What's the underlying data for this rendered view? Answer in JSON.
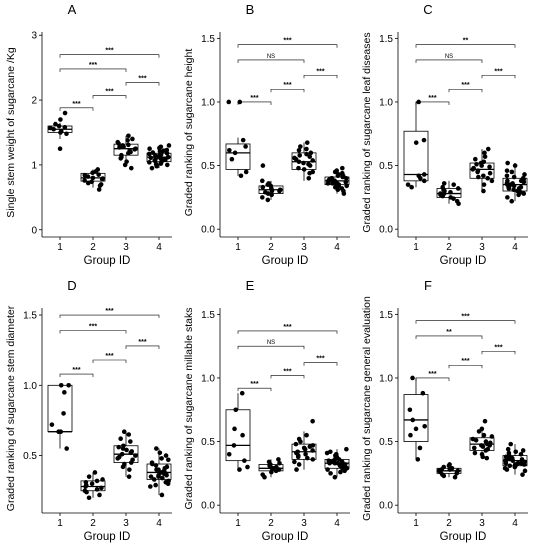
{
  "chart_data": [
    {
      "panel": "A",
      "type": "boxplot",
      "xlabel": "Group ID",
      "ylabel": "Single stem weight of sugarcane /Kg",
      "categories": [
        "1",
        "2",
        "3",
        "4"
      ],
      "ylim": [
        -0.05,
        3.05
      ],
      "yticks": [
        0,
        1,
        2,
        3
      ],
      "yticklabels": [
        "0",
        "1",
        "2",
        "3"
      ],
      "boxes": [
        {
          "q1": 1.5,
          "median": 1.55,
          "q3": 1.6,
          "low": 1.4,
          "high": 1.65
        },
        {
          "q1": 0.75,
          "median": 0.8,
          "q3": 0.87,
          "low": 0.65,
          "high": 0.93
        },
        {
          "q1": 1.15,
          "median": 1.25,
          "q3": 1.32,
          "low": 1.0,
          "high": 1.45
        },
        {
          "q1": 1.05,
          "median": 1.12,
          "q3": 1.18,
          "low": 0.95,
          "high": 1.3
        }
      ],
      "points": [
        [
          1.55,
          1.58,
          1.52,
          1.6,
          1.63,
          1.48,
          1.8,
          1.25,
          1.5,
          1.7,
          1.57
        ],
        [
          0.78,
          0.82,
          0.72,
          0.85,
          0.68,
          0.9,
          0.76,
          0.8,
          0.62,
          0.93,
          0.84,
          0.74,
          0.79,
          0.7,
          0.88
        ],
        [
          1.2,
          1.3,
          1.1,
          1.4,
          1.25,
          1.15,
          1.35,
          1.05,
          1.28,
          1.22,
          0.95,
          1.45,
          1.18,
          1.33,
          1.0,
          1.38,
          1.27,
          1.12,
          1.24,
          1.31
        ],
        [
          1.1,
          1.15,
          1.05,
          1.2,
          1.12,
          1.0,
          1.25,
          1.08,
          1.18,
          1.14,
          0.95,
          1.3,
          1.02,
          1.22,
          1.16,
          1.09,
          1.28,
          1.06,
          1.19,
          1.11,
          0.98,
          1.23,
          1.13,
          1.07,
          1.17,
          1.04,
          1.21,
          1.26,
          1.01,
          1.1
        ]
      ],
      "brackets": [
        {
          "from": 1,
          "to": 2,
          "label": "***",
          "y": 1.88
        },
        {
          "from": 2,
          "to": 3,
          "label": "***",
          "y": 2.07
        },
        {
          "from": 3,
          "to": 4,
          "label": "***",
          "y": 2.27
        },
        {
          "from": 1,
          "to": 3,
          "label": "***",
          "y": 2.48
        },
        {
          "from": 1,
          "to": 4,
          "label": "***",
          "y": 2.7
        }
      ]
    },
    {
      "panel": "B",
      "type": "boxplot",
      "xlabel": "Group ID",
      "ylabel": "Graded ranking of sugarcane height",
      "categories": [
        "1",
        "2",
        "3",
        "4"
      ],
      "ylim": [
        -0.03,
        1.55
      ],
      "yticks": [
        0,
        0.5,
        1,
        1.5
      ],
      "yticklabels": [
        "0.0",
        "0.5",
        "1.0",
        "1.5"
      ],
      "boxes": [
        {
          "q1": 0.47,
          "median": 0.6,
          "q3": 0.67,
          "low": 0.42,
          "high": 0.72
        },
        {
          "q1": 0.28,
          "median": 0.31,
          "q3": 0.34,
          "low": 0.23,
          "high": 0.38
        },
        {
          "q1": 0.47,
          "median": 0.53,
          "q3": 0.6,
          "low": 0.38,
          "high": 0.68
        },
        {
          "q1": 0.35,
          "median": 0.38,
          "q3": 0.41,
          "low": 0.28,
          "high": 0.48
        }
      ],
      "points": [
        [
          1.0,
          1.0,
          0.6,
          0.65,
          0.55,
          0.45,
          0.42,
          0.7,
          0.62
        ],
        [
          0.3,
          0.32,
          0.28,
          0.35,
          0.25,
          0.33,
          0.31,
          0.38,
          0.29,
          0.27,
          0.34,
          0.23,
          0.5,
          0.36,
          0.3
        ],
        [
          0.5,
          0.55,
          0.6,
          0.45,
          0.65,
          0.52,
          0.48,
          0.58,
          0.62,
          0.4,
          0.68,
          0.53,
          0.57,
          0.47,
          0.63,
          0.51,
          0.56,
          0.44,
          0.59,
          0.54
        ],
        [
          0.38,
          0.36,
          0.4,
          0.35,
          0.42,
          0.33,
          0.45,
          0.37,
          0.39,
          0.3,
          0.48,
          0.34,
          0.41,
          0.28,
          0.43,
          0.38,
          0.36,
          0.46,
          0.32,
          0.4,
          0.35,
          0.37,
          0.39,
          0.42,
          0.31,
          0.44,
          0.38,
          0.36,
          0.34,
          0.4
        ]
      ],
      "brackets": [
        {
          "from": 1,
          "to": 2,
          "label": "***",
          "y": 1.0
        },
        {
          "from": 2,
          "to": 3,
          "label": "***",
          "y": 1.1
        },
        {
          "from": 3,
          "to": 4,
          "label": "***",
          "y": 1.21
        },
        {
          "from": 1,
          "to": 3,
          "label": "NS",
          "y": 1.33
        },
        {
          "from": 1,
          "to": 4,
          "label": "***",
          "y": 1.45
        }
      ]
    },
    {
      "panel": "C",
      "type": "boxplot",
      "xlabel": "Group ID",
      "ylabel": "Graded ranking of sugarcane leaf diseases",
      "categories": [
        "1",
        "2",
        "3",
        "4"
      ],
      "ylim": [
        -0.03,
        1.55
      ],
      "yticks": [
        0,
        0.5,
        1,
        1.5
      ],
      "yticklabels": [
        "0.0",
        "0.5",
        "1.0",
        "1.5"
      ],
      "boxes": [
        {
          "q1": 0.38,
          "median": 0.43,
          "q3": 0.77,
          "low": 0.33,
          "high": 1.0
        },
        {
          "q1": 0.25,
          "median": 0.28,
          "q3": 0.32,
          "low": 0.2,
          "high": 0.38
        },
        {
          "q1": 0.4,
          "median": 0.47,
          "q3": 0.52,
          "low": 0.3,
          "high": 0.63
        },
        {
          "q1": 0.3,
          "median": 0.35,
          "q3": 0.4,
          "low": 0.22,
          "high": 0.52
        }
      ],
      "points": [
        [
          1.0,
          0.68,
          0.43,
          0.4,
          0.35,
          0.33,
          0.7,
          0.42,
          0.38
        ],
        [
          0.28,
          0.3,
          0.25,
          0.32,
          0.22,
          0.35,
          0.27,
          0.2,
          0.29,
          0.33,
          0.24,
          0.31,
          0.26,
          0.36,
          0.28
        ],
        [
          0.45,
          0.5,
          0.4,
          0.55,
          0.47,
          0.42,
          0.6,
          0.38,
          0.52,
          0.48,
          0.3,
          0.63,
          0.44,
          0.53,
          0.46,
          0.41,
          0.57,
          0.49,
          0.35,
          0.51
        ],
        [
          0.35,
          0.32,
          0.38,
          0.3,
          0.4,
          0.28,
          0.45,
          0.33,
          0.37,
          0.25,
          0.5,
          0.31,
          0.42,
          0.22,
          0.36,
          0.34,
          0.39,
          0.29,
          0.43,
          0.35,
          0.27,
          0.41,
          0.33,
          0.38,
          0.3,
          0.46,
          0.52,
          0.34,
          0.36,
          0.32
        ]
      ],
      "brackets": [
        {
          "from": 1,
          "to": 2,
          "label": "***",
          "y": 1.0
        },
        {
          "from": 2,
          "to": 3,
          "label": "***",
          "y": 1.1
        },
        {
          "from": 3,
          "to": 4,
          "label": "***",
          "y": 1.21
        },
        {
          "from": 1,
          "to": 3,
          "label": "NS",
          "y": 1.33
        },
        {
          "from": 1,
          "to": 4,
          "label": "**",
          "y": 1.45
        }
      ]
    },
    {
      "panel": "D",
      "type": "boxplot",
      "xlabel": "Group ID",
      "ylabel": "Graded ranking of sugarcane stem diameter",
      "categories": [
        "1",
        "2",
        "3",
        "4"
      ],
      "ylim": [
        0.12,
        1.55
      ],
      "yticks": [
        0.5,
        1,
        1.5
      ],
      "yticklabels": [
        "0.5",
        "1.0",
        "1.5"
      ],
      "boxes": [
        {
          "q1": 0.67,
          "median": 0.67,
          "q3": 1.0,
          "low": 0.55,
          "high": 1.0
        },
        {
          "q1": 0.25,
          "median": 0.28,
          "q3": 0.32,
          "low": 0.2,
          "high": 0.38
        },
        {
          "q1": 0.45,
          "median": 0.51,
          "q3": 0.57,
          "low": 0.35,
          "high": 0.67
        },
        {
          "q1": 0.33,
          "median": 0.38,
          "q3": 0.44,
          "low": 0.22,
          "high": 0.55
        }
      ],
      "points": [
        [
          1.0,
          1.0,
          0.95,
          0.67,
          0.67,
          0.55,
          0.8,
          0.72
        ],
        [
          0.28,
          0.3,
          0.25,
          0.32,
          0.22,
          0.35,
          0.27,
          0.2,
          0.29,
          0.33,
          0.24,
          0.31,
          0.26,
          0.38
        ],
        [
          0.5,
          0.55,
          0.45,
          0.6,
          0.52,
          0.48,
          0.65,
          0.42,
          0.57,
          0.53,
          0.35,
          0.67,
          0.47,
          0.56,
          0.51,
          0.44,
          0.62,
          0.49,
          0.4,
          0.54
        ],
        [
          0.38,
          0.35,
          0.42,
          0.33,
          0.45,
          0.3,
          0.5,
          0.36,
          0.4,
          0.28,
          0.55,
          0.34,
          0.44,
          0.22,
          0.39,
          0.37,
          0.43,
          0.31,
          0.47,
          0.38,
          0.29,
          0.41,
          0.36,
          0.4,
          0.32,
          0.48,
          0.52,
          0.37,
          0.39,
          0.35
        ]
      ],
      "brackets": [
        {
          "from": 1,
          "to": 2,
          "label": "***",
          "y": 1.08
        },
        {
          "from": 2,
          "to": 3,
          "label": "***",
          "y": 1.18
        },
        {
          "from": 3,
          "to": 4,
          "label": "***",
          "y": 1.28
        },
        {
          "from": 1,
          "to": 3,
          "label": "***",
          "y": 1.39
        },
        {
          "from": 1,
          "to": 4,
          "label": "***",
          "y": 1.5
        }
      ]
    },
    {
      "panel": "E",
      "type": "boxplot",
      "xlabel": "Group ID",
      "ylabel": "Graded ranking of sugarcane millable staks",
      "categories": [
        "1",
        "2",
        "3",
        "4"
      ],
      "ylim": [
        -0.03,
        1.55
      ],
      "yticks": [
        0,
        0.5,
        1,
        1.5
      ],
      "yticklabels": [
        "0.0",
        "0.5",
        "1.0",
        "1.5"
      ],
      "boxes": [
        {
          "q1": 0.35,
          "median": 0.47,
          "q3": 0.75,
          "low": 0.28,
          "high": 0.88
        },
        {
          "q1": 0.27,
          "median": 0.29,
          "q3": 0.32,
          "low": 0.22,
          "high": 0.36
        },
        {
          "q1": 0.36,
          "median": 0.42,
          "q3": 0.48,
          "low": 0.28,
          "high": 0.58
        },
        {
          "q1": 0.29,
          "median": 0.33,
          "q3": 0.36,
          "low": 0.22,
          "high": 0.44
        }
      ],
      "points": [
        [
          0.88,
          0.75,
          0.55,
          0.47,
          0.4,
          0.35,
          0.3,
          0.28,
          0.6
        ],
        [
          0.29,
          0.3,
          0.27,
          0.32,
          0.24,
          0.33,
          0.28,
          0.22,
          0.31,
          0.34,
          0.26,
          0.36,
          0.29
        ],
        [
          0.42,
          0.45,
          0.38,
          0.5,
          0.4,
          0.36,
          0.55,
          0.34,
          0.47,
          0.43,
          0.28,
          0.66,
          0.39,
          0.48,
          0.41,
          0.37,
          0.52,
          0.44,
          0.32,
          0.46
        ],
        [
          0.33,
          0.31,
          0.35,
          0.29,
          0.37,
          0.27,
          0.4,
          0.32,
          0.34,
          0.25,
          0.44,
          0.3,
          0.36,
          0.22,
          0.33,
          0.31,
          0.38,
          0.28,
          0.42,
          0.34,
          0.26,
          0.35,
          0.32,
          0.36,
          0.29,
          0.39,
          0.41,
          0.33,
          0.3,
          0.31
        ]
      ],
      "brackets": [
        {
          "from": 1,
          "to": 2,
          "label": "***",
          "y": 0.92
        },
        {
          "from": 2,
          "to": 3,
          "label": "***",
          "y": 1.02
        },
        {
          "from": 3,
          "to": 4,
          "label": "***",
          "y": 1.12
        },
        {
          "from": 1,
          "to": 3,
          "label": "NS",
          "y": 1.25
        },
        {
          "from": 1,
          "to": 4,
          "label": "***",
          "y": 1.37
        }
      ]
    },
    {
      "panel": "F",
      "type": "boxplot",
      "xlabel": "Group ID",
      "ylabel": "Graded ranking of sugarcane general evaluation",
      "categories": [
        "1",
        "2",
        "3",
        "4"
      ],
      "ylim": [
        -0.03,
        1.55
      ],
      "yticks": [
        0,
        0.5,
        1,
        1.5
      ],
      "yticklabels": [
        "0.0",
        "0.5",
        "1.0",
        "1.5"
      ],
      "boxes": [
        {
          "q1": 0.5,
          "median": 0.67,
          "q3": 0.87,
          "low": 0.36,
          "high": 1.0
        },
        {
          "q1": 0.25,
          "median": 0.27,
          "q3": 0.29,
          "low": 0.22,
          "high": 0.32
        },
        {
          "q1": 0.43,
          "median": 0.48,
          "q3": 0.53,
          "low": 0.37,
          "high": 0.6
        },
        {
          "q1": 0.31,
          "median": 0.35,
          "q3": 0.39,
          "low": 0.24,
          "high": 0.48
        }
      ],
      "points": [
        [
          1.0,
          0.88,
          0.75,
          0.67,
          0.62,
          0.55,
          0.45,
          0.36,
          0.6
        ],
        [
          0.27,
          0.28,
          0.25,
          0.29,
          0.23,
          0.3,
          0.26,
          0.22,
          0.28,
          0.31,
          0.24,
          0.27,
          0.32
        ],
        [
          0.48,
          0.5,
          0.45,
          0.55,
          0.47,
          0.43,
          0.6,
          0.4,
          0.52,
          0.49,
          0.37,
          0.66,
          0.46,
          0.54,
          0.44,
          0.41,
          0.58,
          0.51,
          0.38,
          0.47
        ],
        [
          0.35,
          0.33,
          0.37,
          0.31,
          0.39,
          0.29,
          0.42,
          0.34,
          0.36,
          0.27,
          0.48,
          0.32,
          0.38,
          0.24,
          0.35,
          0.33,
          0.4,
          0.3,
          0.44,
          0.36,
          0.28,
          0.37,
          0.34,
          0.38,
          0.31,
          0.41,
          0.43,
          0.35,
          0.32,
          0.33
        ]
      ],
      "brackets": [
        {
          "from": 1,
          "to": 2,
          "label": "***",
          "y": 1.0
        },
        {
          "from": 2,
          "to": 3,
          "label": "***",
          "y": 1.1
        },
        {
          "from": 3,
          "to": 4,
          "label": "***",
          "y": 1.21
        },
        {
          "from": 1,
          "to": 3,
          "label": "**",
          "y": 1.33
        },
        {
          "from": 1,
          "to": 4,
          "label": "***",
          "y": 1.45
        }
      ]
    }
  ]
}
